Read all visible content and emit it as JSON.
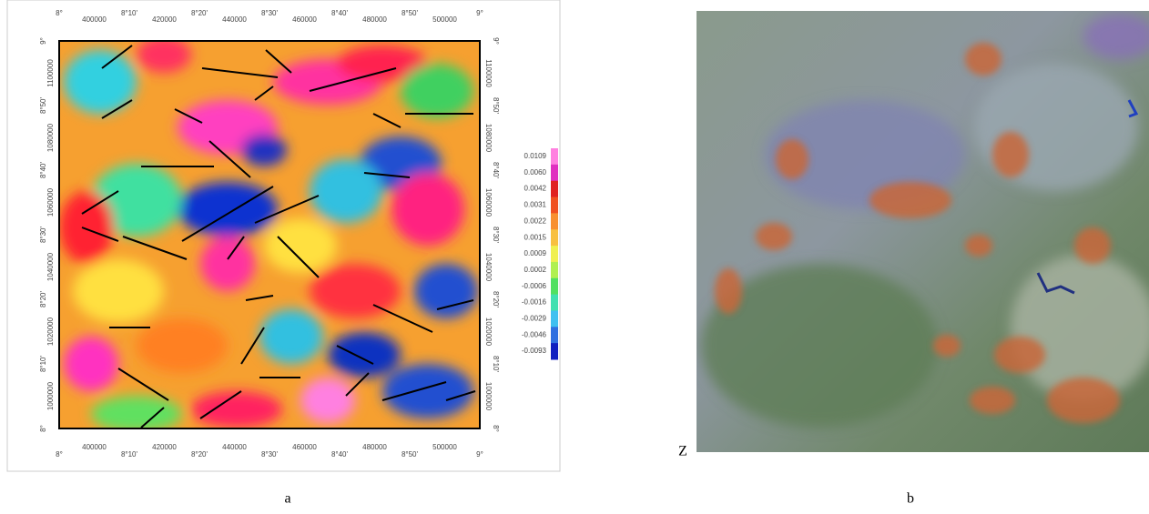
{
  "panel_a": {
    "top_labels": [
      "8°",
      "400000",
      "8°10'",
      "420000",
      "8°20'",
      "440000",
      "8°30'",
      "460000",
      "8°40'",
      "480000",
      "8°50'",
      "500000",
      "9°"
    ],
    "bottom_labels": [
      "8°",
      "400000",
      "8°10'",
      "420000",
      "8°20'",
      "440000",
      "8°30'",
      "460000",
      "8°40'",
      "480000",
      "8°50'",
      "500000",
      "9°"
    ],
    "left_labels": [
      "9°",
      "1100000",
      "8°50'",
      "1080000",
      "8°40'",
      "1060000",
      "8°30'",
      "1040000",
      "8°20'",
      "1020000",
      "8°10'",
      "1000000",
      "8°"
    ],
    "right_labels": [
      "9°",
      "1100000",
      "8°50'",
      "1080000",
      "8°40'",
      "1060000",
      "8°30'",
      "1040000",
      "8°20'",
      "1020000",
      "8°10'",
      "1000000",
      "8°"
    ],
    "colorbar_labels": [
      "0.0109",
      "0.0060",
      "0.0042",
      "0.0031",
      "0.0022",
      "0.0015",
      "0.0009",
      "0.0002",
      "-0.0006",
      "-0.0016",
      "-0.0029",
      "-0.0046",
      "-0.0093"
    ],
    "caption": "a"
  },
  "panel_b": {
    "corner_label": "Z",
    "caption": "b"
  }
}
